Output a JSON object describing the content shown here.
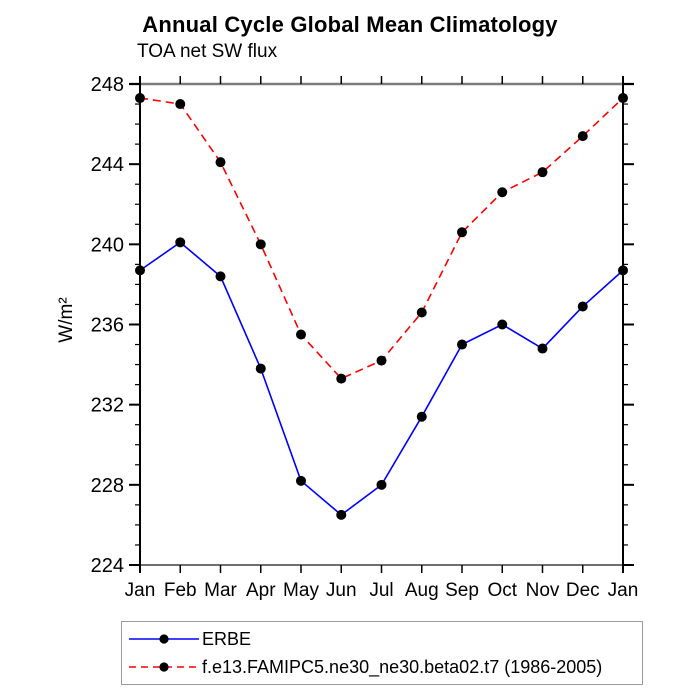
{
  "chart": {
    "title": "Annual Cycle Global Mean Climatology",
    "subtitle": "TOA net SW flux"
  },
  "chart_data": {
    "type": "line",
    "title": "Annual Cycle Global Mean Climatology",
    "subtitle": "TOA net SW flux",
    "xlabel": "",
    "ylabel": "W/m²",
    "categories": [
      "Jan",
      "Feb",
      "Mar",
      "Apr",
      "May",
      "Jun",
      "Jul",
      "Aug",
      "Sep",
      "Oct",
      "Nov",
      "Dec",
      "Jan"
    ],
    "ylim": [
      224,
      248
    ],
    "ytick_step": 4,
    "minor_tick_step": 1,
    "ytick_labels": [
      "224",
      "228",
      "232",
      "236",
      "240",
      "244",
      "248"
    ],
    "grid": false,
    "legend_position": "bottom",
    "marker": "filled-circle",
    "marker_color": "#000000",
    "series": [
      {
        "name": "ERBE",
        "color": "#0000ff",
        "dash": "solid",
        "marker_color": "#000000",
        "values": [
          238.7,
          240.1,
          238.4,
          233.8,
          228.2,
          226.5,
          228.0,
          231.4,
          235.0,
          236.0,
          234.8,
          236.9,
          238.7
        ]
      },
      {
        "name": "f.e13.FAMIPC5.ne30_ne30.beta02.t7 (1986-2005)",
        "color": "#ff0000",
        "dash": "dashed",
        "marker_color": "#000000",
        "values": [
          247.3,
          247.0,
          244.1,
          240.0,
          235.5,
          233.3,
          234.2,
          236.6,
          240.6,
          242.6,
          243.6,
          245.4,
          247.3
        ]
      }
    ]
  }
}
